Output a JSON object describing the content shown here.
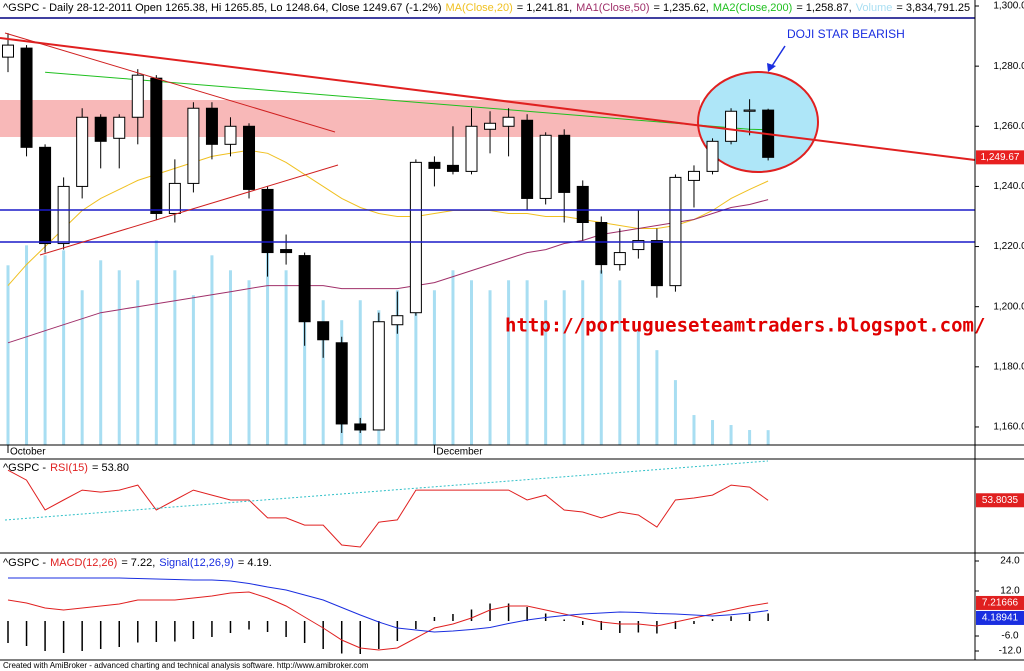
{
  "chart_data": [
    {
      "type": "candlestick",
      "title": "^GSPC - Daily 28-12-2011 Open 1265.38, Hi 1265.85, Lo 1248.64, Close 1249.67 (-1.2%)",
      "categories": [
        "October",
        null,
        null,
        null,
        null,
        null,
        null,
        null,
        null,
        null,
        null,
        null,
        null,
        null,
        null,
        null,
        null,
        null,
        null,
        null,
        null,
        null,
        null,
        "December",
        null,
        null,
        null,
        null,
        null,
        null,
        null,
        null,
        null,
        null,
        null,
        null,
        null,
        null,
        null,
        null,
        null,
        null
      ],
      "open": [
        1283,
        1286,
        1253,
        1221,
        1240,
        1263,
        1256,
        1263,
        1276,
        1231,
        1241,
        1266,
        1254,
        1260,
        1239,
        1219,
        1217,
        1195,
        1188,
        1161,
        1159,
        1194,
        1198,
        1248,
        1247,
        1245,
        1259,
        1260,
        1262,
        1236,
        1257,
        1240,
        1228,
        1214,
        1219,
        1222,
        1207,
        1242,
        1245,
        1255,
        1265,
        1265.38
      ],
      "high": [
        1291,
        1287,
        1254,
        1243,
        1266,
        1264,
        1264,
        1279,
        1277,
        1249,
        1268,
        1268,
        1263,
        1261,
        1240,
        1224,
        1218,
        1195,
        1190,
        1163,
        1198,
        1205,
        1249,
        1250,
        1260,
        1266,
        1265,
        1266,
        1264,
        1258,
        1259,
        1242,
        1230,
        1226,
        1232,
        1226,
        1244,
        1247,
        1256,
        1266,
        1269,
        1265.85
      ],
      "low": [
        1278,
        1250,
        1218,
        1219,
        1236,
        1246,
        1246,
        1254,
        1229,
        1228,
        1238,
        1249,
        1250,
        1236,
        1210,
        1214,
        1187,
        1183,
        1158,
        1158,
        1159,
        1191,
        1197,
        1240,
        1244,
        1244,
        1251,
        1250,
        1232,
        1234,
        1228,
        1222,
        1211,
        1212,
        1216,
        1203,
        1205,
        1233,
        1244,
        1254,
        1257,
        1248.64
      ],
      "close": [
        1287,
        1253,
        1221,
        1240,
        1263,
        1255,
        1263,
        1277,
        1231,
        1241,
        1266,
        1254,
        1260,
        1239,
        1218,
        1218,
        1195,
        1189,
        1161,
        1159,
        1195,
        1197,
        1248,
        1246,
        1245,
        1260,
        1261,
        1263,
        1236,
        1257,
        1238,
        1228,
        1214,
        1218,
        1222,
        1207,
        1243,
        1245,
        1255,
        1265,
        1265.4,
        1249.67
      ],
      "close_label": "1,249.67",
      "close_color": "#e82020",
      "volume_name": "Volume",
      "volume_color": "#a8def2",
      "volume_label": "= 3,834,791.25",
      "volume": [
        46440000,
        51600000,
        49020000,
        50310000,
        39990000,
        47730000,
        45150000,
        42570000,
        52890000,
        45150000,
        38700000,
        49020000,
        45150000,
        42570000,
        50310000,
        45150000,
        39990000,
        37410000,
        32250000,
        37410000,
        34830000,
        39990000,
        39990000,
        39990000,
        45150000,
        42570000,
        39990000,
        42570000,
        42570000,
        37410000,
        39990000,
        42570000,
        45150000,
        42570000,
        29670000,
        24510000,
        16770000,
        7740000,
        6450000,
        5160000,
        3870000,
        3834791.25
      ],
      "vlim": [
        0,
        115000000
      ],
      "series": [
        {
          "name": "MA(Close,20)",
          "color": "#f0c020",
          "header_label": "= 1,241.81,",
          "values": [
            1207,
            1214,
            1220,
            1226,
            1232,
            1236,
            1239,
            1242,
            1244,
            1246,
            1248,
            1250,
            1251,
            1252,
            1251,
            1248,
            1244,
            1240,
            1236,
            1233,
            1231,
            1230,
            1230,
            1231,
            1232,
            1232,
            1232,
            1231,
            1231,
            1230,
            1230,
            1229,
            1228,
            1227,
            1226,
            1226,
            1227,
            1229,
            1232,
            1236,
            1239,
            1241.81
          ]
        },
        {
          "name": "MA1(Close,50)",
          "color": "#a0306a",
          "header_label": "= 1,235.62,",
          "values": [
            1188,
            1190,
            1192,
            1194,
            1196,
            1198,
            1199,
            1200,
            1201,
            1202,
            1203,
            1204,
            1205,
            1206,
            1207,
            1207,
            1207,
            1207,
            1206,
            1206,
            1206,
            1206,
            1207,
            1208,
            1210,
            1212,
            1214,
            1216,
            1218,
            1219,
            1221,
            1222,
            1224,
            1225,
            1226,
            1227,
            1228,
            1229,
            1231,
            1233,
            1234,
            1235.62
          ]
        },
        {
          "name": "MA2(Close,200)",
          "color": "#20c020",
          "header_label": "= 1,258.87,",
          "values": [
            null,
            null,
            1278,
            1277.5,
            1277,
            1276.5,
            1276,
            1275.5,
            1275,
            1274.5,
            1274,
            1273.5,
            1273,
            1272.5,
            1272,
            1271.5,
            1271,
            1270.5,
            1270,
            1269.5,
            1269,
            1268.5,
            1268,
            1267.5,
            1267,
            1266.5,
            1266,
            1265.5,
            1265,
            1264.5,
            1264,
            1263.5,
            1263,
            1262.5,
            1262,
            1261.5,
            1261,
            1260.5,
            1260,
            1259.5,
            1259,
            1258.87
          ]
        }
      ],
      "ylim": [
        1154,
        1302
      ],
      "yticks": [
        {
          "value": 1300,
          "label": "1,300.0"
        },
        {
          "value": 1280,
          "label": "1,280.0"
        },
        {
          "value": 1260,
          "label": "1,260.0"
        },
        {
          "value": 1240,
          "label": "1,240.0"
        },
        {
          "value": 1220,
          "label": "1,220.0"
        },
        {
          "value": 1200,
          "label": "1,200.0"
        },
        {
          "value": 1180,
          "label": "1,180.0"
        },
        {
          "value": 1160,
          "label": "1,160.0"
        }
      ]
    },
    {
      "type": "line",
      "title": "^GSPC -",
      "ylim": [
        33,
        70
      ],
      "series": [
        {
          "name": "RSI(15)",
          "color": "#e02020",
          "header_label": "= 53.80",
          "last_label": "53.8035",
          "values": [
            65.9,
            61.9,
            49.9,
            53.9,
            57.9,
            57.1,
            57.9,
            59.9,
            49.9,
            53.9,
            57.9,
            55.9,
            53.9,
            53.9,
            46.7,
            46.7,
            43.8,
            43.8,
            35.8,
            35,
            45,
            45.9,
            57.9,
            57.9,
            57.9,
            57.9,
            57.9,
            57.9,
            53.9,
            55.9,
            49.9,
            49.1,
            46.7,
            49.1,
            47.9,
            43,
            53.9,
            54.7,
            55.9,
            59.9,
            59.1,
            53.8035
          ]
        }
      ]
    },
    {
      "type": "line",
      "title": "^GSPC -",
      "ylim": [
        -15.6,
        26.4
      ],
      "yticks": [
        {
          "value": 24,
          "label": "24.0"
        },
        {
          "value": 12,
          "label": "12.0"
        },
        {
          "value": -6,
          "label": "-6.0"
        },
        {
          "value": -12,
          "label": "-12.0"
        }
      ],
      "series": [
        {
          "kind": "bar",
          "color": "#000000",
          "values": [
            -8.8,
            -10,
            -12,
            -12.8,
            -12,
            -11.2,
            -10.4,
            -8.6,
            -8.4,
            -8.2,
            -7.2,
            -6.4,
            -4.8,
            -3.4,
            -4.4,
            -6.4,
            -8.8,
            -11.2,
            -13,
            -13.2,
            -11.2,
            -8,
            -3.2,
            1.6,
            2.8,
            4.6,
            7,
            7,
            5.6,
            3,
            0.6,
            -1.6,
            -3.6,
            -4.8,
            -4.6,
            -5,
            -3.2,
            -1.2,
            0.8,
            1.9,
            2.8,
            3.03
          ]
        },
        {
          "name": "MACD(12,26)",
          "color": "#e02020",
          "header_label": "= 7.22,",
          "last_label": "7.21666",
          "values": [
            8.4,
            7.2,
            5.2,
            4.4,
            5.2,
            6,
            6.8,
            8.4,
            8.4,
            8.4,
            9.2,
            10,
            11.2,
            11.6,
            9.2,
            6,
            1.6,
            -2.8,
            -7.6,
            -10.8,
            -11.6,
            -10.8,
            -6.8,
            -2.8,
            -1.2,
            1.2,
            4.4,
            6,
            6,
            4.4,
            2.8,
            1.2,
            -0.4,
            -1.2,
            -1.2,
            -2,
            -0.4,
            1.2,
            2.8,
            4.4,
            6,
            7.21666
          ]
        },
        {
          "name": "Signal(12,26,9)",
          "color": "#1a2ee0",
          "header_label": "= 4.19.",
          "last_label": "4.18941",
          "values": [
            17.2,
            17.2,
            17.2,
            17.2,
            17.2,
            17.2,
            17.2,
            17,
            16.8,
            16.6,
            16.4,
            16.4,
            16,
            15,
            13.6,
            12.4,
            10.4,
            8.4,
            5.4,
            2.4,
            -0.4,
            -2.8,
            -3.6,
            -4.4,
            -4,
            -3.4,
            -2.6,
            -1,
            0.4,
            1.4,
            2.2,
            2.8,
            3.2,
            3.6,
            3.4,
            3,
            2.8,
            2.4,
            2,
            2.5,
            3.2,
            4.18941
          ]
        }
      ]
    }
  ],
  "annotations": {
    "pattern": "DOJI STAR BEARISH",
    "url": "http://portugueseteamtraders.blogspot.com/",
    "footer": "Created with AmiBroker - advanced charting and technical analysis software. http://www.amibroker.com"
  }
}
